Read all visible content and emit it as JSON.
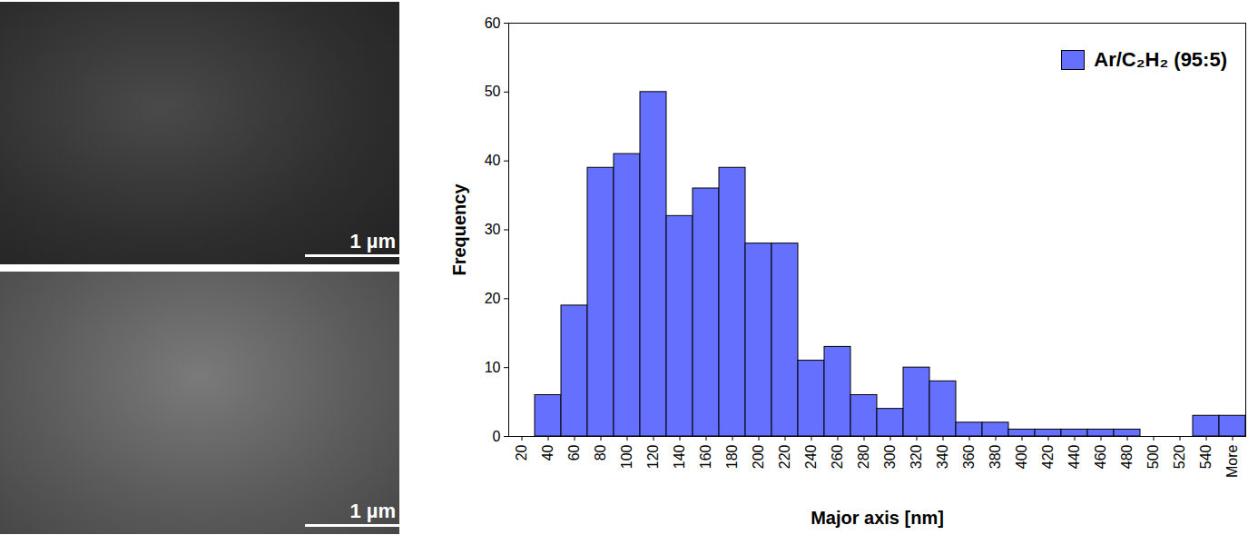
{
  "chart_data": {
    "type": "bar",
    "xlabel": "Major axis [nm]",
    "ylabel": "Frequency",
    "categories": [
      "20",
      "40",
      "60",
      "80",
      "100",
      "120",
      "140",
      "160",
      "180",
      "200",
      "220",
      "240",
      "260",
      "280",
      "300",
      "320",
      "340",
      "360",
      "380",
      "400",
      "420",
      "440",
      "460",
      "480",
      "500",
      "520",
      "540",
      "More"
    ],
    "series": [
      {
        "name": "Ar/C₂H₂ (95:5)",
        "color": "#6670ff",
        "values": [
          0,
          6,
          19,
          39,
          41,
          50,
          32,
          36,
          39,
          28,
          28,
          11,
          13,
          6,
          4,
          10,
          8,
          2,
          2,
          1,
          1,
          1,
          1,
          1,
          0,
          0,
          3,
          3
        ]
      }
    ],
    "ylim": [
      0,
      60
    ],
    "yticks": [
      0,
      10,
      20,
      30,
      40,
      50,
      60
    ],
    "grid": false,
    "legend": "top-right"
  },
  "images": [
    {
      "scale_bar": "1 µm"
    },
    {
      "scale_bar": "1 µm"
    }
  ]
}
